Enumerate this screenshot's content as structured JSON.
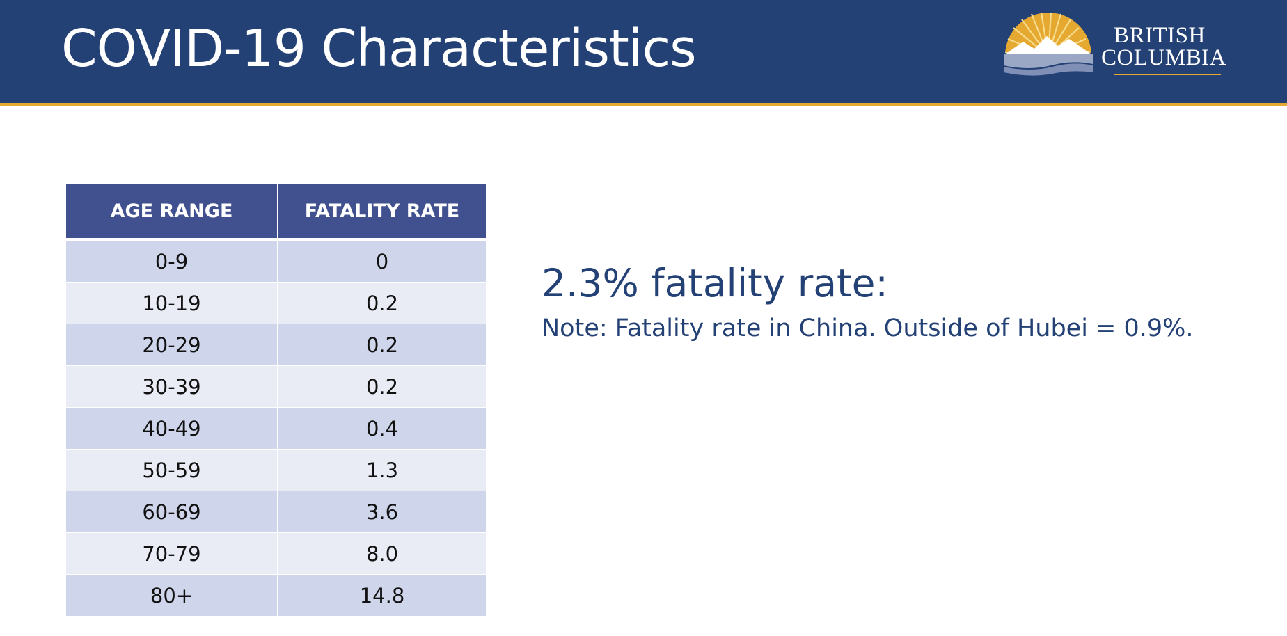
{
  "slide": {
    "title": "COVID-19 Characteristics",
    "logo": {
      "line1": "BRITISH",
      "line2": "COLUMBIA"
    }
  },
  "table": {
    "headers": [
      "AGE RANGE",
      "FATALITY RATE"
    ],
    "rows": [
      [
        "0-9",
        "0"
      ],
      [
        "10-19",
        "0.2"
      ],
      [
        "20-29",
        "0.2"
      ],
      [
        "30-39",
        "0.2"
      ],
      [
        "40-49",
        "0.4"
      ],
      [
        "50-59",
        "1.3"
      ],
      [
        "60-69",
        "3.6"
      ],
      [
        "70-79",
        "8.0"
      ],
      [
        "80+",
        "14.8"
      ]
    ]
  },
  "callout": {
    "headline": "2.3% fatality rate:",
    "note": "Note: Fatality rate in China. Outside of Hubei = 0.9%."
  },
  "colors": {
    "header_bg": "#244176",
    "accent_gold": "#e5a931",
    "table_header": "#41508f",
    "row_dark": "#cfd5ea",
    "row_light": "#e9ebf5",
    "text_blue": "#244176"
  }
}
